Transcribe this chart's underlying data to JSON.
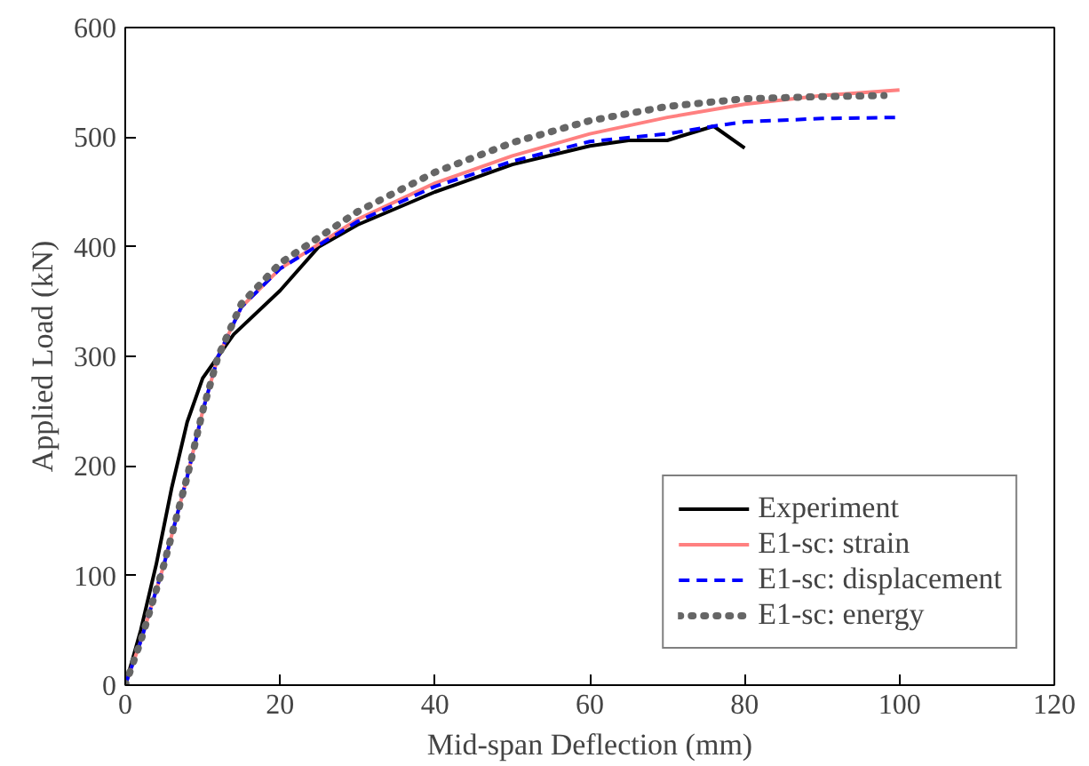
{
  "chart_data": {
    "type": "line",
    "xlabel": "Mid-span Deflection (mm)",
    "ylabel": "Applied Load (kN)",
    "xlim": [
      0,
      120
    ],
    "ylim": [
      0,
      600
    ],
    "xticks": [
      0,
      20,
      40,
      60,
      80,
      100,
      120
    ],
    "yticks": [
      0,
      100,
      200,
      300,
      400,
      500,
      600
    ],
    "grid": false,
    "legend": "bottom right",
    "marker": "none",
    "series": [
      {
        "name": "Experiment",
        "color": "#000000",
        "line_style": "solid",
        "x": [
          0,
          2,
          4,
          6,
          8,
          10,
          12,
          14,
          20,
          25,
          30,
          40,
          50,
          60,
          65,
          70,
          76,
          80
        ],
        "values": [
          0,
          50,
          110,
          180,
          240,
          280,
          300,
          320,
          360,
          400,
          420,
          450,
          475,
          492,
          497,
          497,
          510,
          490
        ]
      },
      {
        "name": "E1-sc: strain",
        "color": "#ff8080",
        "line_style": "solid",
        "x": [
          0,
          2,
          5,
          8,
          10,
          12,
          15,
          20,
          30,
          40,
          50,
          60,
          70,
          80,
          90,
          100
        ],
        "values": [
          0,
          40,
          110,
          190,
          250,
          300,
          345,
          380,
          425,
          458,
          483,
          503,
          518,
          530,
          538,
          543
        ]
      },
      {
        "name": "E1-sc: displacement",
        "color": "#0000ff",
        "line_style": "dashed",
        "x": [
          0,
          2,
          5,
          8,
          10,
          12,
          15,
          20,
          30,
          40,
          50,
          60,
          70,
          76,
          80,
          90,
          100
        ],
        "values": [
          0,
          40,
          110,
          190,
          250,
          300,
          345,
          380,
          423,
          455,
          478,
          496,
          503,
          510,
          514,
          517,
          518
        ]
      },
      {
        "name": "E1-sc: energy",
        "color": "#666666",
        "line_style": "dotted",
        "x": [
          0,
          2,
          5,
          8,
          10,
          12,
          15,
          20,
          30,
          40,
          50,
          60,
          70,
          80,
          90,
          98
        ],
        "values": [
          0,
          40,
          110,
          190,
          250,
          300,
          348,
          385,
          432,
          468,
          495,
          515,
          528,
          535,
          537,
          538
        ]
      }
    ]
  }
}
